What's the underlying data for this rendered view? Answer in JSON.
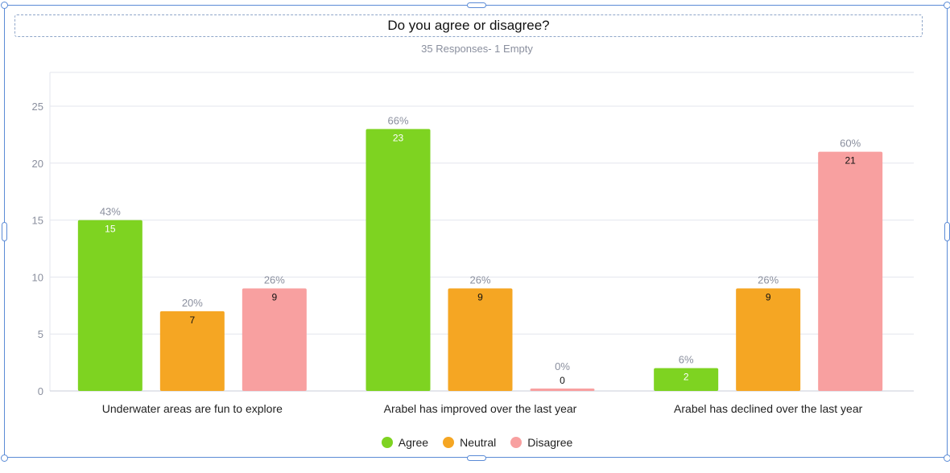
{
  "title": "Do you agree or disagree?",
  "subtitle": "35 Responses- 1 Empty",
  "colors": {
    "Agree": "#7ed321",
    "Neutral": "#f5a623",
    "Disagree": "#f8a0a0"
  },
  "chart_data": {
    "type": "bar",
    "categories": [
      "Underwater areas are fun to explore",
      "Arabel has improved over the last year",
      "Arabel has declined over the last year"
    ],
    "series": [
      {
        "name": "Agree",
        "values": [
          15,
          23,
          2
        ],
        "percents": [
          "43%",
          "66%",
          "6%"
        ]
      },
      {
        "name": "Neutral",
        "values": [
          7,
          9,
          9
        ],
        "percents": [
          "20%",
          "26%",
          "26%"
        ]
      },
      {
        "name": "Disagree",
        "values": [
          9,
          0,
          21
        ],
        "percents": [
          "26%",
          "0%",
          "60%"
        ]
      }
    ],
    "yticks": [
      0,
      5,
      10,
      15,
      20,
      25
    ],
    "ylim": [
      0,
      28
    ],
    "grid": true,
    "legend_position": "bottom-center"
  }
}
